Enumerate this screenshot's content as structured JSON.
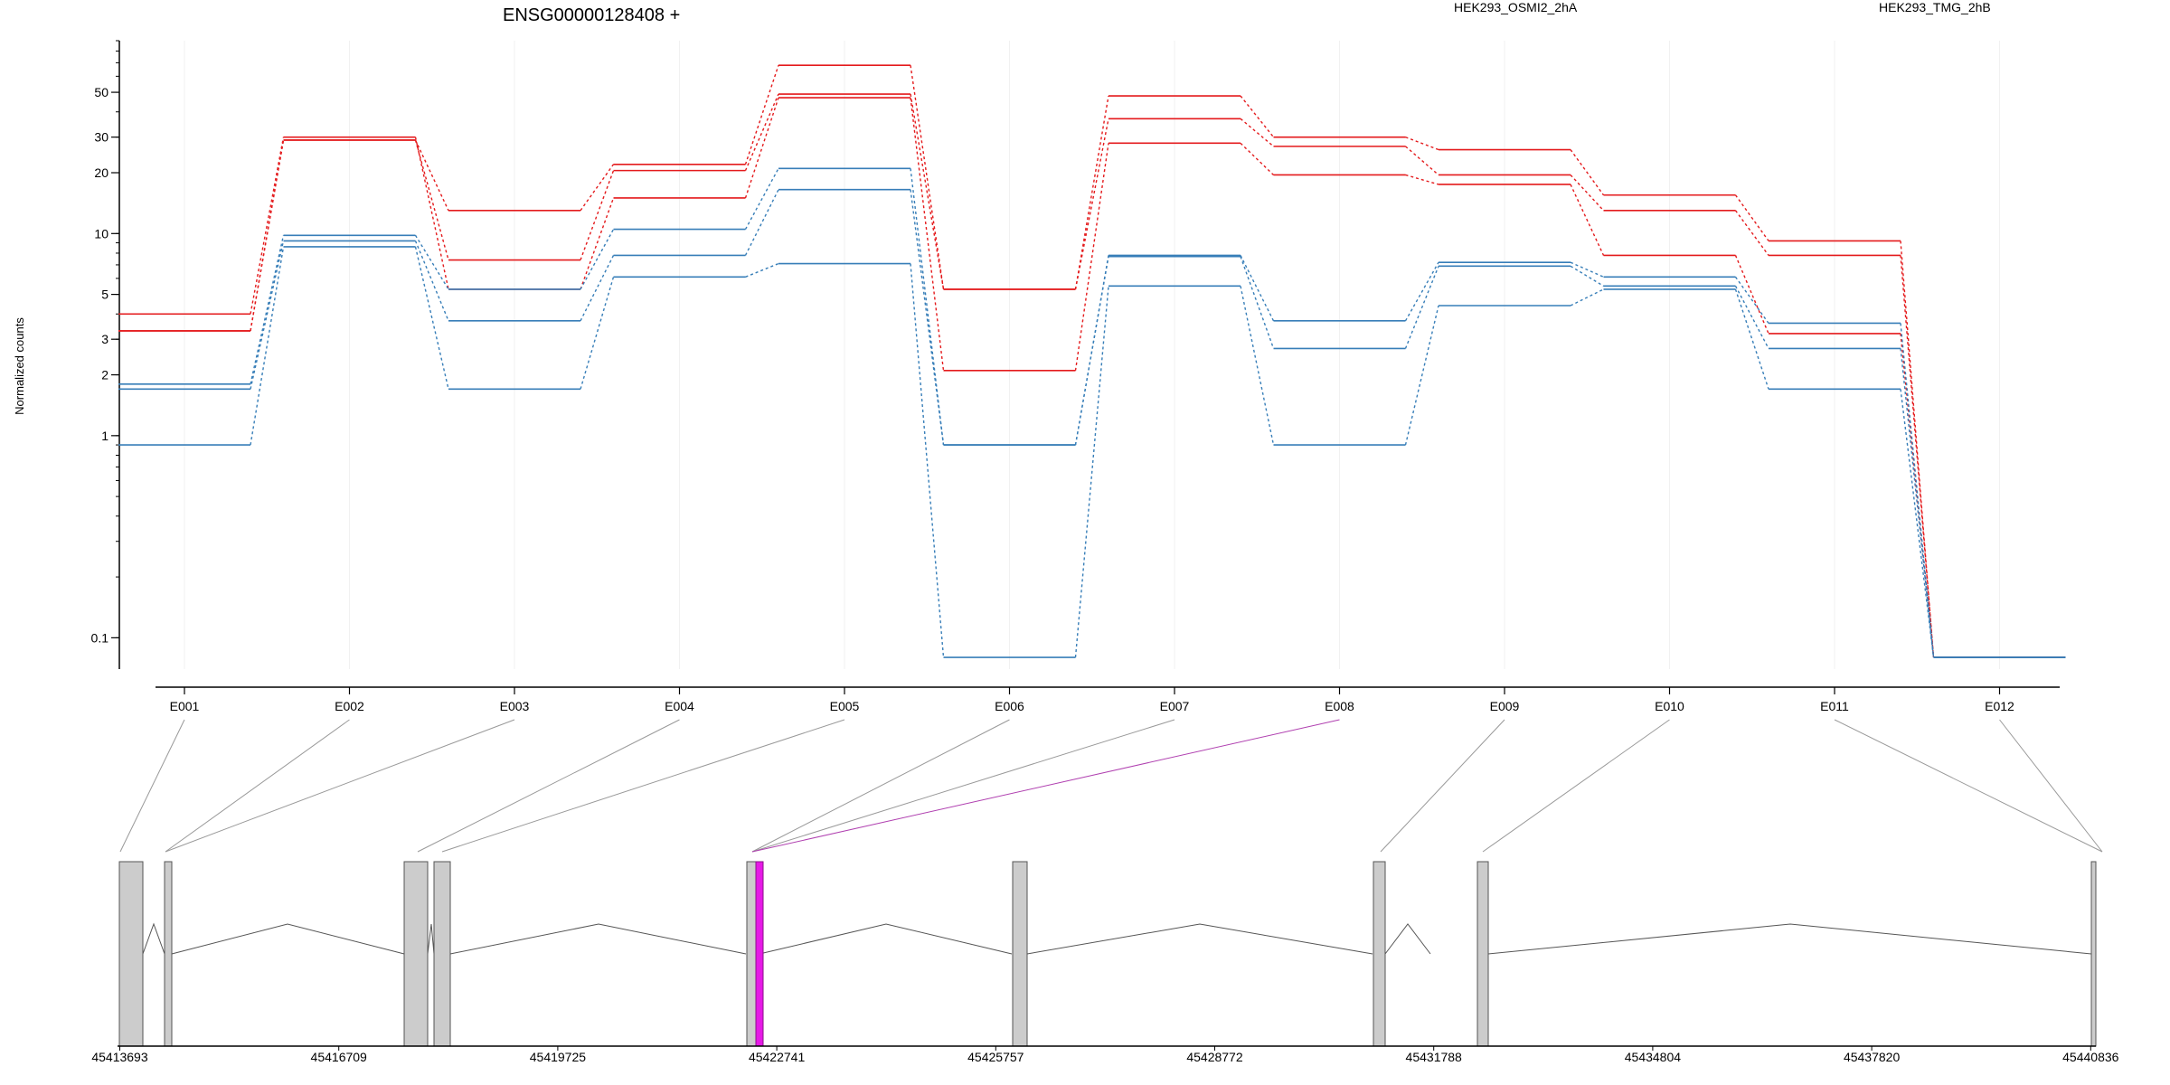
{
  "chart_data": {
    "type": "line",
    "title": "ENSG00000128408 +",
    "ylabel": "Normalized counts",
    "yscale": "log",
    "ylim": [
      0.07,
      90
    ],
    "y_ticks": [
      0.1,
      1,
      2,
      3,
      5,
      10,
      20,
      30,
      50
    ],
    "y_tick_labels": [
      "0.1",
      "1",
      "2",
      "3",
      "5",
      "10",
      "20",
      "30",
      "50"
    ],
    "categories": [
      "E001",
      "E002",
      "E003",
      "E004",
      "E005",
      "E006",
      "E007",
      "E008",
      "E009",
      "E010",
      "E011",
      "E012"
    ],
    "legend": [
      {
        "label": "HEK293_OSMI2_2hA",
        "color": "#e41a1c"
      },
      {
        "label": "HEK293_TMG_2hB",
        "color": "#377eb8"
      }
    ],
    "highlighted_exon": "E008",
    "highlight_color": "#e619e6",
    "series": [
      {
        "group": "red",
        "values": [
          3.3,
          29,
          13,
          22,
          68,
          5.3,
          48,
          30,
          26,
          15.5,
          9.2,
          0.08
        ]
      },
      {
        "group": "red",
        "values": [
          3.3,
          29,
          7.4,
          20.5,
          49,
          5.3,
          37,
          27,
          19.5,
          13,
          7.8,
          0.08
        ]
      },
      {
        "group": "red",
        "values": [
          4.0,
          30,
          5.3,
          15,
          47,
          2.1,
          28,
          19.5,
          17.5,
          7.8,
          3.2,
          0.08
        ]
      },
      {
        "group": "blue",
        "values": [
          1.8,
          9.8,
          5.3,
          10.5,
          21,
          0.9,
          7.8,
          3.7,
          7.2,
          6.1,
          3.6,
          0.08
        ]
      },
      {
        "group": "blue",
        "values": [
          1.7,
          9.2,
          3.7,
          7.8,
          16.5,
          0.9,
          7.7,
          2.7,
          6.9,
          5.5,
          2.7,
          0.08
        ]
      },
      {
        "group": "blue",
        "values": [
          0.9,
          8.6,
          1.7,
          6.1,
          7.1,
          0.08,
          5.5,
          0.9,
          4.4,
          5.3,
          1.7,
          0.08
        ]
      }
    ],
    "gene_model": {
      "coordinate_ticks": [
        "45413693",
        "45416709",
        "45419725",
        "45422741",
        "45425757",
        "45428772",
        "45431788",
        "45434804",
        "45437820",
        "45440836"
      ],
      "exon_group_ticks": [
        "E001",
        "E002",
        "E003",
        "E004",
        "E005",
        "E006",
        "E007",
        "E008",
        "E009",
        "E010",
        "E011",
        "E012"
      ]
    }
  }
}
